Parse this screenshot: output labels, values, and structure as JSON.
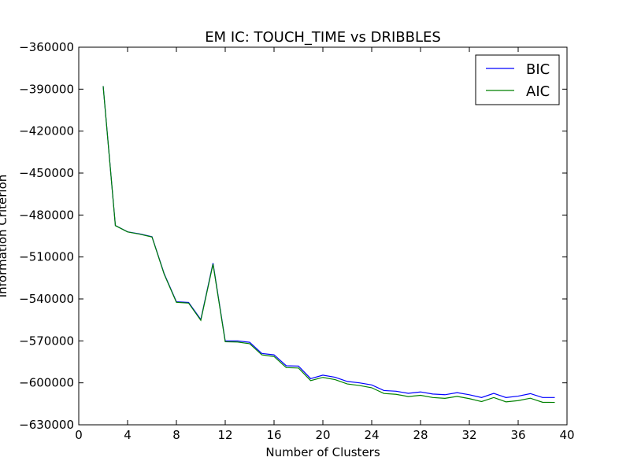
{
  "chart_data": {
    "type": "line",
    "title": "EM IC: TOUCH_TIME vs DRIBBLES",
    "xlabel": "Number of Clusters",
    "ylabel": "Information Criterion",
    "xlim": [
      0,
      40
    ],
    "ylim": [
      -630000,
      -360000
    ],
    "xticks": [
      0,
      4,
      8,
      12,
      16,
      20,
      24,
      28,
      32,
      36,
      40
    ],
    "yticks": [
      -360000,
      -390000,
      -420000,
      -450000,
      -480000,
      -510000,
      -540000,
      -570000,
      -600000,
      -630000
    ],
    "xtick_labels": [
      "0",
      "4",
      "8",
      "12",
      "16",
      "20",
      "24",
      "28",
      "32",
      "36",
      "40"
    ],
    "ytick_labels": [
      "−360000",
      "−390000",
      "−420000",
      "−450000",
      "−480000",
      "−510000",
      "−540000",
      "−570000",
      "−600000",
      "−630000"
    ],
    "grid": false,
    "legend_position": "top-right",
    "x": [
      2,
      3,
      4,
      5,
      6,
      7,
      8,
      9,
      10,
      11,
      12,
      13,
      14,
      15,
      16,
      17,
      18,
      19,
      20,
      21,
      22,
      23,
      24,
      25,
      26,
      27,
      28,
      29,
      30,
      31,
      32,
      33,
      34,
      35,
      36,
      37,
      38,
      39
    ],
    "series": [
      {
        "name": "BIC",
        "color": "#0000ff",
        "values": [
          -387800,
          -487500,
          -492000,
          -493500,
          -495500,
          -522000,
          -542000,
          -542500,
          -554700,
          -514400,
          -570000,
          -570000,
          -571000,
          -579000,
          -580000,
          -587800,
          -588000,
          -597000,
          -594500,
          -596000,
          -599000,
          -600000,
          -601500,
          -605500,
          -606000,
          -607500,
          -606500,
          -608000,
          -608500,
          -607000,
          -608500,
          -610500,
          -607500,
          -610500,
          -609500,
          -607700,
          -610500,
          -610500
        ]
      },
      {
        "name": "AIC",
        "color": "#008000",
        "values": [
          -387900,
          -487600,
          -492100,
          -493700,
          -495700,
          -522400,
          -542400,
          -543000,
          -555300,
          -515100,
          -570600,
          -570800,
          -572000,
          -580000,
          -581200,
          -589100,
          -589400,
          -598400,
          -596100,
          -597700,
          -600800,
          -601900,
          -603500,
          -607600,
          -608200,
          -609800,
          -608900,
          -610500,
          -611100,
          -609700,
          -611300,
          -613400,
          -610500,
          -613600,
          -612700,
          -611000,
          -613900,
          -614000
        ]
      }
    ]
  }
}
